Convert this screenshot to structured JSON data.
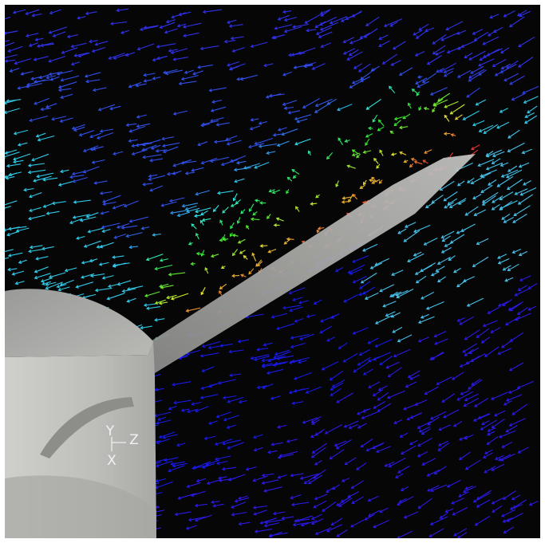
{
  "axes": {
    "y": "Y",
    "z": "Z",
    "x": "X"
  }
}
